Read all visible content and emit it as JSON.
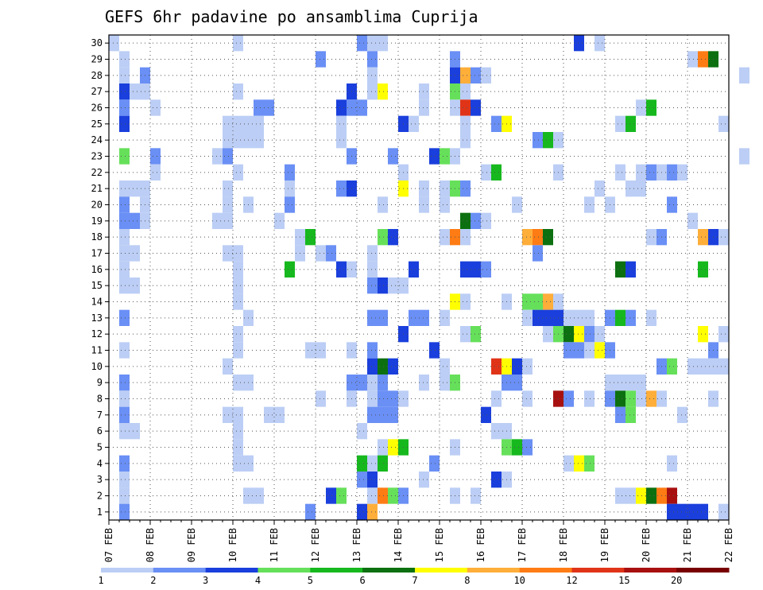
{
  "chart_data": {
    "type": "heatmap",
    "title": "GEFS 6hr padavine po ansamblima Cuprija",
    "x_ticks": [
      "07 FEB",
      "08 FEB",
      "09 FEB",
      "10 FEB",
      "11 FEB",
      "12 FEB",
      "13 FEB",
      "14 FEB",
      "15 FEB",
      "16 FEB",
      "17 FEB",
      "18 FEB",
      "19 FEB",
      "20 FEB",
      "21 FEB",
      "22 FEB"
    ],
    "xlim": [
      "07 FEB 00",
      "22 FEB 00"
    ],
    "y_ticks": [
      "1",
      "2",
      "3",
      "4",
      "5",
      "6",
      "7",
      "8",
      "9",
      "10",
      "11",
      "12",
      "13",
      "14",
      "15",
      "16",
      "17",
      "18",
      "19",
      "20",
      "21",
      "22",
      "23",
      "24",
      "25",
      "26",
      "27",
      "28",
      "29",
      "30"
    ],
    "ylim": [
      0,
      30
    ],
    "grid": true,
    "colorbar": {
      "position": "bottom",
      "labels": [
        "1",
        "2",
        "3",
        "4",
        "5",
        "6",
        "7",
        "8",
        "10",
        "12",
        "15",
        "20"
      ],
      "colors": [
        "#bccef5",
        "#6a8ff5",
        "#1a3fdc",
        "#66e05a",
        "#16b81e",
        "#0c7010",
        "#ffff00",
        "#ffae3a",
        "#ff7c14",
        "#e03418",
        "#a81010",
        "#780000"
      ]
    },
    "cells": [
      [
        0,
        30,
        1
      ],
      [
        12,
        30,
        1
      ],
      [
        24,
        30,
        2
      ],
      [
        25,
        30,
        1
      ],
      [
        26,
        30,
        1
      ],
      [
        45,
        30,
        3
      ],
      [
        47,
        30,
        1
      ],
      [
        1,
        29,
        1
      ],
      [
        20,
        29,
        2
      ],
      [
        25,
        29,
        2
      ],
      [
        33,
        29,
        2
      ],
      [
        56,
        29,
        1
      ],
      [
        57,
        29,
        9
      ],
      [
        58,
        29,
        6
      ],
      [
        1,
        28,
        1
      ],
      [
        3,
        28,
        2
      ],
      [
        25,
        28,
        1
      ],
      [
        33,
        28,
        3
      ],
      [
        34,
        28,
        8
      ],
      [
        35,
        28,
        2
      ],
      [
        36,
        28,
        1
      ],
      [
        61,
        28,
        1
      ],
      [
        1,
        27,
        3
      ],
      [
        2,
        27,
        1
      ],
      [
        3,
        27,
        1
      ],
      [
        12,
        27,
        1
      ],
      [
        23,
        27,
        3
      ],
      [
        25,
        27,
        1
      ],
      [
        26,
        27,
        7
      ],
      [
        30,
        27,
        1
      ],
      [
        33,
        27,
        4
      ],
      [
        34,
        27,
        1
      ],
      [
        1,
        26,
        2
      ],
      [
        4,
        26,
        1
      ],
      [
        14,
        26,
        2
      ],
      [
        15,
        26,
        2
      ],
      [
        22,
        26,
        3
      ],
      [
        23,
        26,
        2
      ],
      [
        24,
        26,
        2
      ],
      [
        30,
        26,
        1
      ],
      [
        33,
        26,
        1
      ],
      [
        34,
        26,
        10
      ],
      [
        35,
        26,
        3
      ],
      [
        51,
        26,
        1
      ],
      [
        52,
        26,
        5
      ],
      [
        1,
        25,
        3
      ],
      [
        11,
        25,
        1
      ],
      [
        12,
        25,
        1
      ],
      [
        13,
        25,
        1
      ],
      [
        14,
        25,
        1
      ],
      [
        22,
        25,
        1
      ],
      [
        28,
        25,
        3
      ],
      [
        29,
        25,
        1
      ],
      [
        34,
        25,
        1
      ],
      [
        37,
        25,
        2
      ],
      [
        38,
        25,
        7
      ],
      [
        49,
        25,
        1
      ],
      [
        50,
        25,
        5
      ],
      [
        59,
        25,
        1
      ],
      [
        11,
        24,
        1
      ],
      [
        12,
        24,
        1
      ],
      [
        13,
        24,
        1
      ],
      [
        14,
        24,
        1
      ],
      [
        22,
        24,
        1
      ],
      [
        34,
        24,
        1
      ],
      [
        41,
        24,
        2
      ],
      [
        42,
        24,
        5
      ],
      [
        43,
        24,
        1
      ],
      [
        1,
        23,
        4
      ],
      [
        4,
        23,
        2
      ],
      [
        10,
        23,
        1
      ],
      [
        11,
        23,
        2
      ],
      [
        23,
        23,
        2
      ],
      [
        27,
        23,
        2
      ],
      [
        31,
        23,
        3
      ],
      [
        32,
        23,
        4
      ],
      [
        33,
        23,
        1
      ],
      [
        61,
        23,
        1
      ],
      [
        4,
        22,
        1
      ],
      [
        12,
        22,
        1
      ],
      [
        17,
        22,
        2
      ],
      [
        28,
        22,
        1
      ],
      [
        36,
        22,
        1
      ],
      [
        37,
        22,
        5
      ],
      [
        43,
        22,
        1
      ],
      [
        49,
        22,
        1
      ],
      [
        51,
        22,
        1
      ],
      [
        52,
        22,
        2
      ],
      [
        53,
        22,
        1
      ],
      [
        54,
        22,
        2
      ],
      [
        55,
        22,
        1
      ],
      [
        1,
        21,
        1
      ],
      [
        2,
        21,
        1
      ],
      [
        3,
        21,
        1
      ],
      [
        11,
        21,
        1
      ],
      [
        17,
        21,
        1
      ],
      [
        22,
        21,
        2
      ],
      [
        23,
        21,
        3
      ],
      [
        28,
        21,
        7
      ],
      [
        30,
        21,
        1
      ],
      [
        32,
        21,
        1
      ],
      [
        33,
        21,
        4
      ],
      [
        34,
        21,
        2
      ],
      [
        47,
        21,
        1
      ],
      [
        50,
        21,
        1
      ],
      [
        51,
        21,
        1
      ],
      [
        1,
        20,
        2
      ],
      [
        3,
        20,
        1
      ],
      [
        11,
        20,
        1
      ],
      [
        13,
        20,
        1
      ],
      [
        17,
        20,
        2
      ],
      [
        26,
        20,
        1
      ],
      [
        30,
        20,
        1
      ],
      [
        32,
        20,
        1
      ],
      [
        39,
        20,
        1
      ],
      [
        46,
        20,
        1
      ],
      [
        48,
        20,
        1
      ],
      [
        54,
        20,
        2
      ],
      [
        1,
        19,
        2
      ],
      [
        2,
        19,
        2
      ],
      [
        3,
        19,
        1
      ],
      [
        10,
        19,
        1
      ],
      [
        11,
        19,
        1
      ],
      [
        16,
        19,
        1
      ],
      [
        34,
        19,
        6
      ],
      [
        35,
        19,
        2
      ],
      [
        36,
        19,
        1
      ],
      [
        56,
        19,
        1
      ],
      [
        1,
        18,
        1
      ],
      [
        18,
        18,
        1
      ],
      [
        19,
        18,
        5
      ],
      [
        26,
        18,
        4
      ],
      [
        27,
        18,
        3
      ],
      [
        32,
        18,
        1
      ],
      [
        33,
        18,
        9
      ],
      [
        34,
        18,
        1
      ],
      [
        40,
        18,
        8
      ],
      [
        41,
        18,
        9
      ],
      [
        42,
        18,
        6
      ],
      [
        52,
        18,
        1
      ],
      [
        53,
        18,
        2
      ],
      [
        57,
        18,
        8
      ],
      [
        58,
        18,
        3
      ],
      [
        59,
        18,
        1
      ],
      [
        1,
        17,
        1
      ],
      [
        2,
        17,
        1
      ],
      [
        11,
        17,
        1
      ],
      [
        12,
        17,
        1
      ],
      [
        18,
        17,
        1
      ],
      [
        20,
        17,
        1
      ],
      [
        21,
        17,
        2
      ],
      [
        25,
        17,
        1
      ],
      [
        41,
        17,
        2
      ],
      [
        1,
        16,
        1
      ],
      [
        12,
        16,
        1
      ],
      [
        17,
        16,
        5
      ],
      [
        22,
        16,
        3
      ],
      [
        23,
        16,
        1
      ],
      [
        25,
        16,
        1
      ],
      [
        29,
        16,
        3
      ],
      [
        34,
        16,
        3
      ],
      [
        35,
        16,
        3
      ],
      [
        36,
        16,
        2
      ],
      [
        49,
        16,
        6
      ],
      [
        50,
        16,
        3
      ],
      [
        57,
        16,
        5
      ],
      [
        1,
        15,
        1
      ],
      [
        2,
        15,
        1
      ],
      [
        12,
        15,
        1
      ],
      [
        25,
        15,
        2
      ],
      [
        26,
        15,
        3
      ],
      [
        27,
        15,
        1
      ],
      [
        28,
        15,
        1
      ],
      [
        12,
        14,
        1
      ],
      [
        33,
        14,
        7
      ],
      [
        34,
        14,
        1
      ],
      [
        38,
        14,
        1
      ],
      [
        40,
        14,
        4
      ],
      [
        41,
        14,
        4
      ],
      [
        42,
        14,
        8
      ],
      [
        43,
        14,
        1
      ],
      [
        1,
        13,
        2
      ],
      [
        13,
        13,
        1
      ],
      [
        25,
        13,
        2
      ],
      [
        26,
        13,
        2
      ],
      [
        29,
        13,
        2
      ],
      [
        30,
        13,
        2
      ],
      [
        32,
        13,
        1
      ],
      [
        40,
        13,
        1
      ],
      [
        41,
        13,
        3
      ],
      [
        42,
        13,
        3
      ],
      [
        43,
        13,
        3
      ],
      [
        44,
        13,
        1
      ],
      [
        45,
        13,
        1
      ],
      [
        46,
        13,
        1
      ],
      [
        48,
        13,
        2
      ],
      [
        49,
        13,
        5
      ],
      [
        50,
        13,
        2
      ],
      [
        52,
        13,
        1
      ],
      [
        12,
        12,
        1
      ],
      [
        28,
        12,
        3
      ],
      [
        34,
        12,
        1
      ],
      [
        35,
        12,
        4
      ],
      [
        42,
        12,
        1
      ],
      [
        43,
        12,
        4
      ],
      [
        44,
        12,
        6
      ],
      [
        45,
        12,
        7
      ],
      [
        46,
        12,
        2
      ],
      [
        47,
        12,
        1
      ],
      [
        57,
        12,
        7
      ],
      [
        59,
        12,
        1
      ],
      [
        1,
        11,
        1
      ],
      [
        12,
        11,
        1
      ],
      [
        19,
        11,
        1
      ],
      [
        20,
        11,
        1
      ],
      [
        23,
        11,
        1
      ],
      [
        25,
        11,
        2
      ],
      [
        31,
        11,
        3
      ],
      [
        44,
        11,
        2
      ],
      [
        45,
        11,
        2
      ],
      [
        46,
        11,
        1
      ],
      [
        47,
        11,
        7
      ],
      [
        48,
        11,
        2
      ],
      [
        58,
        11,
        2
      ],
      [
        11,
        10,
        1
      ],
      [
        25,
        10,
        3
      ],
      [
        26,
        10,
        6
      ],
      [
        27,
        10,
        3
      ],
      [
        32,
        10,
        1
      ],
      [
        37,
        10,
        10
      ],
      [
        38,
        10,
        7
      ],
      [
        39,
        10,
        3
      ],
      [
        40,
        10,
        1
      ],
      [
        53,
        10,
        2
      ],
      [
        54,
        10,
        4
      ],
      [
        56,
        10,
        1
      ],
      [
        57,
        10,
        1
      ],
      [
        58,
        10,
        1
      ],
      [
        59,
        10,
        1
      ],
      [
        1,
        9,
        2
      ],
      [
        12,
        9,
        1
      ],
      [
        13,
        9,
        1
      ],
      [
        23,
        9,
        2
      ],
      [
        24,
        9,
        2
      ],
      [
        25,
        9,
        1
      ],
      [
        26,
        9,
        2
      ],
      [
        30,
        9,
        1
      ],
      [
        32,
        9,
        1
      ],
      [
        33,
        9,
        4
      ],
      [
        38,
        9,
        2
      ],
      [
        39,
        9,
        2
      ],
      [
        48,
        9,
        1
      ],
      [
        49,
        9,
        1
      ],
      [
        50,
        9,
        1
      ],
      [
        51,
        9,
        1
      ],
      [
        1,
        8,
        1
      ],
      [
        20,
        8,
        1
      ],
      [
        23,
        8,
        1
      ],
      [
        25,
        8,
        1
      ],
      [
        26,
        8,
        2
      ],
      [
        27,
        8,
        2
      ],
      [
        28,
        8,
        1
      ],
      [
        37,
        8,
        1
      ],
      [
        40,
        8,
        1
      ],
      [
        43,
        8,
        11
      ],
      [
        44,
        8,
        2
      ],
      [
        46,
        8,
        1
      ],
      [
        48,
        8,
        2
      ],
      [
        49,
        8,
        6
      ],
      [
        50,
        8,
        4
      ],
      [
        51,
        8,
        1
      ],
      [
        52,
        8,
        8
      ],
      [
        53,
        8,
        1
      ],
      [
        58,
        8,
        1
      ],
      [
        1,
        7,
        2
      ],
      [
        11,
        7,
        1
      ],
      [
        12,
        7,
        1
      ],
      [
        15,
        7,
        1
      ],
      [
        16,
        7,
        1
      ],
      [
        25,
        7,
        2
      ],
      [
        26,
        7,
        2
      ],
      [
        27,
        7,
        2
      ],
      [
        36,
        7,
        3
      ],
      [
        49,
        7,
        2
      ],
      [
        50,
        7,
        4
      ],
      [
        55,
        7,
        1
      ],
      [
        1,
        6,
        1
      ],
      [
        2,
        6,
        1
      ],
      [
        12,
        6,
        1
      ],
      [
        24,
        6,
        1
      ],
      [
        37,
        6,
        1
      ],
      [
        38,
        6,
        1
      ],
      [
        12,
        5,
        1
      ],
      [
        26,
        5,
        1
      ],
      [
        27,
        5,
        7
      ],
      [
        28,
        5,
        5
      ],
      [
        33,
        5,
        1
      ],
      [
        38,
        5,
        4
      ],
      [
        39,
        5,
        5
      ],
      [
        40,
        5,
        2
      ],
      [
        1,
        4,
        2
      ],
      [
        12,
        4,
        1
      ],
      [
        13,
        4,
        1
      ],
      [
        24,
        4,
        5
      ],
      [
        25,
        4,
        1
      ],
      [
        26,
        4,
        5
      ],
      [
        31,
        4,
        2
      ],
      [
        44,
        4,
        1
      ],
      [
        45,
        4,
        7
      ],
      [
        46,
        4,
        4
      ],
      [
        54,
        4,
        1
      ],
      [
        1,
        3,
        1
      ],
      [
        24,
        3,
        2
      ],
      [
        25,
        3,
        3
      ],
      [
        30,
        3,
        1
      ],
      [
        37,
        3,
        3
      ],
      [
        38,
        3,
        1
      ],
      [
        1,
        2,
        1
      ],
      [
        13,
        2,
        1
      ],
      [
        14,
        2,
        1
      ],
      [
        21,
        2,
        3
      ],
      [
        22,
        2,
        4
      ],
      [
        25,
        2,
        1
      ],
      [
        26,
        2,
        9
      ],
      [
        27,
        2,
        4
      ],
      [
        28,
        2,
        2
      ],
      [
        33,
        2,
        1
      ],
      [
        35,
        2,
        1
      ],
      [
        49,
        2,
        1
      ],
      [
        50,
        2,
        1
      ],
      [
        51,
        2,
        7
      ],
      [
        52,
        2,
        6
      ],
      [
        53,
        2,
        9
      ],
      [
        54,
        2,
        11
      ],
      [
        1,
        1,
        2
      ],
      [
        19,
        1,
        2
      ],
      [
        24,
        1,
        3
      ],
      [
        25,
        1,
        8
      ],
      [
        54,
        1,
        3
      ],
      [
        55,
        1,
        3
      ],
      [
        56,
        1,
        3
      ],
      [
        57,
        1,
        3
      ],
      [
        59,
        1,
        1
      ]
    ]
  }
}
